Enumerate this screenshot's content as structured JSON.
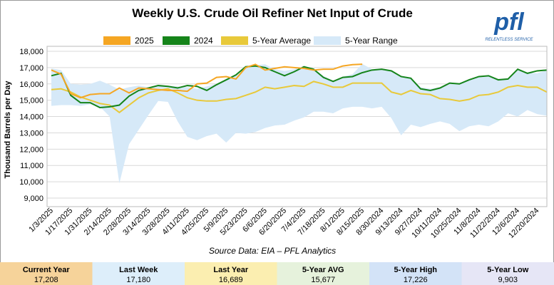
{
  "chart_data": {
    "type": "line",
    "title": "Weekly U.S. Crude Oil Refiner Net Input of Crude",
    "y_label": "Thousand Barrels per Day",
    "source": "Source Data: EIA – PFL Analytics",
    "logo": {
      "text": "pfl",
      "tagline": "RELENTLESS SERVICE"
    },
    "categories": [
      "1/3/2025",
      null,
      "1/17/2025",
      null,
      "1/31/2025",
      null,
      "2/14/2025",
      null,
      "2/28/2025",
      null,
      "3/14/2025",
      null,
      "3/28/2025",
      null,
      "4/11/2025",
      null,
      "4/25/2025",
      null,
      "5/9/2025",
      null,
      "5/23/2025",
      null,
      "6/6/2025",
      null,
      "6/20/2025",
      null,
      "7/4/2025",
      null,
      "7/18/2025",
      null,
      "8/1/2025",
      null,
      "8/15/2025",
      null,
      "8/30/2024",
      null,
      "9/13/2024",
      null,
      "9/27/2024",
      null,
      "10/11/2024",
      null,
      "10/25/2024",
      null,
      "11/8/2024",
      null,
      "11/22/2024",
      null,
      "12/6/2024",
      null,
      "12/20/2024",
      null
    ],
    "band": {
      "name": "5-Year Range",
      "color": "#d6e9f8",
      "high": [
        16950,
        16850,
        16000,
        15950,
        16000,
        16200,
        15950,
        15650,
        15800,
        15900,
        15800,
        15850,
        15900,
        15850,
        15800,
        15700,
        15850,
        16000,
        16300,
        16550,
        17100,
        17150,
        17200,
        16900,
        16800,
        16900,
        17100,
        16900,
        16500,
        16200,
        16450,
        16600,
        17226,
        16900,
        16950,
        16850,
        16500,
        16400,
        15800,
        15700,
        15800,
        16100,
        16050,
        16300,
        16450,
        16550,
        16300,
        16350,
        16900,
        16700,
        16650,
        16850
      ],
      "low": [
        14650,
        14700,
        14700,
        14650,
        14750,
        14600,
        14000,
        9903,
        12300,
        13200,
        14100,
        14950,
        14900,
        13700,
        12750,
        12550,
        12800,
        12950,
        12400,
        13000,
        12950,
        13050,
        13300,
        13450,
        13500,
        13750,
        13950,
        14300,
        14300,
        14200,
        14500,
        14600,
        14600,
        14500,
        14600,
        13900,
        12850,
        13500,
        13350,
        13550,
        13700,
        13550,
        13100,
        13400,
        13500,
        13400,
        13700,
        14200,
        14000,
        14400,
        14150,
        14050
      ]
    },
    "series": [
      {
        "name": "2025",
        "color": "#f5a623",
        "values": [
          16850,
          16600,
          15400,
          15150,
          15350,
          15400,
          15400,
          15750,
          15450,
          15750,
          15700,
          15650,
          15600,
          15600,
          15550,
          16000,
          16050,
          16400,
          16450,
          16300,
          17000,
          17200,
          16850,
          16950,
          17050,
          17000,
          16950,
          16850,
          16900,
          16900,
          17100,
          17180,
          17208,
          null,
          null,
          null,
          null,
          null,
          null,
          null,
          null,
          null,
          null,
          null,
          null,
          null,
          null,
          null,
          null,
          null,
          null,
          null
        ]
      },
      {
        "name": "2024",
        "color": "#15841a",
        "values": [
          16500,
          16650,
          15300,
          14850,
          14850,
          14550,
          14600,
          14700,
          15250,
          15600,
          15750,
          15900,
          15850,
          15750,
          15900,
          15850,
          15600,
          15950,
          16250,
          16550,
          17050,
          17100,
          17000,
          16750,
          16500,
          16750,
          17050,
          16900,
          16400,
          16150,
          16400,
          16450,
          16689,
          16850,
          16900,
          16800,
          16450,
          16350,
          15700,
          15600,
          15750,
          16050,
          16000,
          16250,
          16450,
          16500,
          16250,
          16300,
          16900,
          16650,
          16800,
          16850
        ]
      },
      {
        "name": "5-Year Average",
        "color": "#e8c93a",
        "values": [
          15650,
          15700,
          15500,
          15200,
          15000,
          14800,
          14700,
          14250,
          14700,
          15150,
          15450,
          15600,
          15700,
          15450,
          15150,
          15000,
          14950,
          14950,
          15050,
          15100,
          15300,
          15500,
          15800,
          15700,
          15800,
          15900,
          15850,
          16150,
          16000,
          15800,
          15800,
          16050,
          16050,
          16050,
          16050,
          15500,
          15350,
          15600,
          15400,
          15350,
          15100,
          15050,
          14950,
          15050,
          15300,
          15350,
          15500,
          15800,
          15900,
          15800,
          15800,
          15500
        ]
      }
    ],
    "ylim": [
      9000,
      18000
    ],
    "yticks": [
      {
        "value": 9000,
        "label": "9,000"
      },
      {
        "value": 10000,
        "label": "10,000"
      },
      {
        "value": 11000,
        "label": "11,000"
      },
      {
        "value": 12000,
        "label": "12,000"
      },
      {
        "value": 13000,
        "label": "13,000"
      },
      {
        "value": 14000,
        "label": "14,000"
      },
      {
        "value": 15000,
        "label": "15,000"
      },
      {
        "value": 16000,
        "label": "16,000"
      },
      {
        "value": 17000,
        "label": "17,000"
      },
      {
        "value": 18000,
        "label": "18,000"
      }
    ],
    "grid": true,
    "summary": [
      {
        "label": "Current Year",
        "value": "17,208",
        "color": "#f6d39a"
      },
      {
        "label": "Last Week",
        "value": "17,180",
        "color": "#ddeefa"
      },
      {
        "label": "Last Year",
        "value": "16,689",
        "color": "#fbeeb0"
      },
      {
        "label": "5-Year AVG",
        "value": "15,677",
        "color": "#e6f2dc"
      },
      {
        "label": "5-Year High",
        "value": "17,226",
        "color": "#d3e3f7"
      },
      {
        "label": "5-Year Low",
        "value": "9,903",
        "color": "#e6e6f6"
      }
    ]
  }
}
